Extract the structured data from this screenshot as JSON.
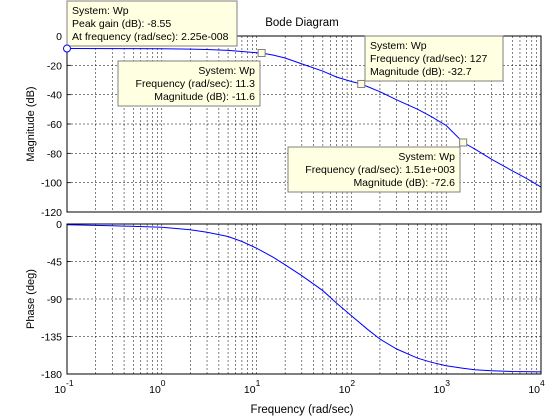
{
  "chart_data": {
    "type": "line",
    "title": "Bode Diagram",
    "xlabel": "Frequency  (rad/sec)",
    "xscale": "log",
    "xlim": [
      0.1,
      10000
    ],
    "x_ticks": [
      0.1,
      1,
      10,
      100,
      1000,
      10000
    ],
    "x_tick_labels": [
      {
        "base": "10",
        "exp": "-1"
      },
      {
        "base": "10",
        "exp": "0"
      },
      {
        "base": "10",
        "exp": "1"
      },
      {
        "base": "10",
        "exp": "2"
      },
      {
        "base": "10",
        "exp": "3"
      },
      {
        "base": "10",
        "exp": "4"
      }
    ],
    "grid": true,
    "line_color": "#0000ff",
    "panels": [
      {
        "name": "magnitude",
        "ylabel": "Magnitude (dB)",
        "ylim": [
          -120,
          0
        ],
        "y_ticks": [
          0,
          -20,
          -40,
          -60,
          -80,
          -100,
          -120
        ],
        "y_tick_labels": [
          "0",
          "-20",
          "-40",
          "-60",
          "-80",
          "-100",
          "-120"
        ],
        "series": [
          {
            "x": [
              0.1,
              0.5,
              1,
              2,
              3,
              5,
              7,
              10,
              11.3,
              15,
              20,
              30,
              50,
              70,
              100,
              127,
              200,
              300,
              500,
              700,
              1000,
              1510,
              2000,
              3000,
              5000,
              7000,
              10000
            ],
            "y": [
              -8.55,
              -8.6,
              -8.7,
              -8.9,
              -9.2,
              -9.8,
              -10.6,
              -11.4,
              -11.6,
              -13.0,
              -15.0,
              -19.0,
              -24.0,
              -28.0,
              -31.0,
              -32.7,
              -38.0,
              -43.5,
              -50.0,
              -55.0,
              -61.0,
              -72.6,
              -77.0,
              -84.0,
              -92.0,
              -97.0,
              -103.0
            ]
          }
        ]
      },
      {
        "name": "phase",
        "ylabel": "Phase (deg)",
        "ylim": [
          -180,
          0
        ],
        "y_ticks": [
          0,
          -45,
          -90,
          -135,
          -180
        ],
        "y_tick_labels": [
          "0",
          "-45",
          "-90",
          "-135",
          "-180"
        ],
        "series": [
          {
            "x": [
              0.1,
              0.3,
              1,
              2,
              3,
              5,
              7,
              10,
              15,
              20,
              30,
              50,
              70,
              100,
              150,
              200,
              300,
              500,
              700,
              1000,
              1500,
              2000,
              3000,
              5000,
              10000
            ],
            "y": [
              -1,
              -2,
              -4,
              -7,
              -10,
              -15,
              -21,
              -29,
              -40,
              -49,
              -62,
              -80,
              -95,
              -110,
              -127,
              -138,
              -150,
              -161,
              -166,
              -170,
              -173,
              -175,
              -176,
              -177,
              -177.5
            ]
          }
        ]
      }
    ],
    "datatips": [
      {
        "panel": "magnitude",
        "x": 0.1,
        "y": -8.55,
        "marker": "open-circle",
        "lines": [
          "System: Wp",
          "Peak gain (dB): -8.55",
          "At frequency (rad/sec): 2.25e-008"
        ]
      },
      {
        "panel": "magnitude",
        "x": 11.3,
        "y": -11.6,
        "marker": "square",
        "lines": [
          "System: Wp",
          "Frequency (rad/sec): 11.3",
          "Magnitude (dB): -11.6"
        ]
      },
      {
        "panel": "magnitude",
        "x": 127,
        "y": -32.7,
        "marker": "square",
        "lines": [
          "System: Wp",
          "Frequency (rad/sec): 127",
          "Magnitude (dB): -32.7"
        ]
      },
      {
        "panel": "magnitude",
        "x": 1510,
        "y": -72.6,
        "marker": "square",
        "lines": [
          "System: Wp",
          "Frequency (rad/sec): 1.51e+003",
          "Magnitude (dB): -72.6"
        ]
      }
    ]
  }
}
